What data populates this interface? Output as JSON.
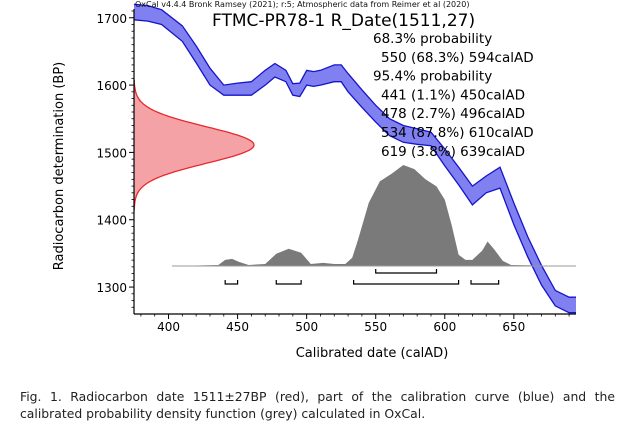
{
  "chart_data": {
    "type": "area",
    "header": "OxCal v4.4.4 Bronk Ramsey (2021); r:5; Atmospheric data from Reimer et al (2020)",
    "title": "FTMC-PR78-1 R_Date(1511,27)",
    "xlabel": "Calibrated date (calAD)",
    "ylabel": "Radiocarbon determination (BP)",
    "xlim": [
      375,
      695
    ],
    "ylim": [
      1260,
      1713
    ],
    "x_ticks": [
      400,
      450,
      500,
      550,
      600,
      650
    ],
    "y_ticks": [
      1300,
      1400,
      1500,
      1600,
      1700
    ],
    "annotations": [
      "68.3% probability",
      "550 (68.3%) 594calAD",
      "95.4% probability",
      "441 (1.1%) 450calAD",
      "478 (2.7%) 496calAD",
      "534 (87.8%) 610calAD",
      "619 (3.8%) 639calAD"
    ],
    "radiocarbon_date": {
      "mean": 1511,
      "sigma": 27,
      "color": "#e8292f",
      "fill": "#f4a2a6"
    },
    "calibration_curve": {
      "color": "#1515c8",
      "fill": "#8080f0",
      "x": [
        375,
        385,
        395,
        410,
        420,
        430,
        440,
        450,
        460,
        470,
        477,
        485,
        490,
        495,
        500,
        505,
        510,
        520,
        525,
        530,
        540,
        550,
        560,
        570,
        580,
        590,
        600,
        610,
        620,
        630,
        640,
        650,
        660,
        670,
        680,
        690,
        695
      ],
      "upper": [
        1720,
        1718,
        1712,
        1688,
        1658,
        1625,
        1600,
        1603,
        1605,
        1622,
        1632,
        1622,
        1602,
        1603,
        1622,
        1620,
        1622,
        1630,
        1630,
        1617,
        1593,
        1570,
        1550,
        1540,
        1535,
        1530,
        1505,
        1478,
        1450,
        1465,
        1478,
        1425,
        1375,
        1332,
        1295,
        1285,
        1285
      ],
      "lower": [
        1697,
        1695,
        1690,
        1665,
        1633,
        1600,
        1585,
        1585,
        1585,
        1600,
        1612,
        1605,
        1585,
        1583,
        1600,
        1598,
        1600,
        1605,
        1605,
        1590,
        1567,
        1545,
        1525,
        1515,
        1512,
        1510,
        1480,
        1452,
        1422,
        1440,
        1447,
        1393,
        1345,
        1303,
        1272,
        1262,
        1262
      ]
    },
    "probability_density": {
      "color": "#7a7a7a",
      "x": [
        375,
        436,
        441,
        446,
        451,
        458,
        470,
        478,
        487,
        496,
        503,
        512,
        520,
        528,
        533,
        537,
        545,
        553,
        562,
        570,
        578,
        586,
        594,
        600,
        605,
        610,
        615,
        620,
        627,
        631,
        636,
        642,
        648,
        695
      ],
      "y": [
        0,
        0.01,
        0.06,
        0.07,
        0.04,
        0.01,
        0.02,
        0.12,
        0.17,
        0.13,
        0.02,
        0.03,
        0.02,
        0.02,
        0.08,
        0.25,
        0.62,
        0.83,
        0.91,
        0.99,
        0.95,
        0.85,
        0.78,
        0.65,
        0.4,
        0.11,
        0.06,
        0.06,
        0.15,
        0.24,
        0.16,
        0.05,
        0.01,
        0
      ]
    },
    "ranges_68": [
      [
        550,
        594
      ]
    ],
    "ranges_95": [
      [
        441,
        450
      ],
      [
        478,
        496
      ],
      [
        534,
        610
      ],
      [
        619,
        639
      ]
    ]
  },
  "caption": "Fig. 1. Radiocarbon date 1511±27BP (red), part of the calibration curve (blue) and the calibrated probability density function (grey) calculated in OxCal."
}
